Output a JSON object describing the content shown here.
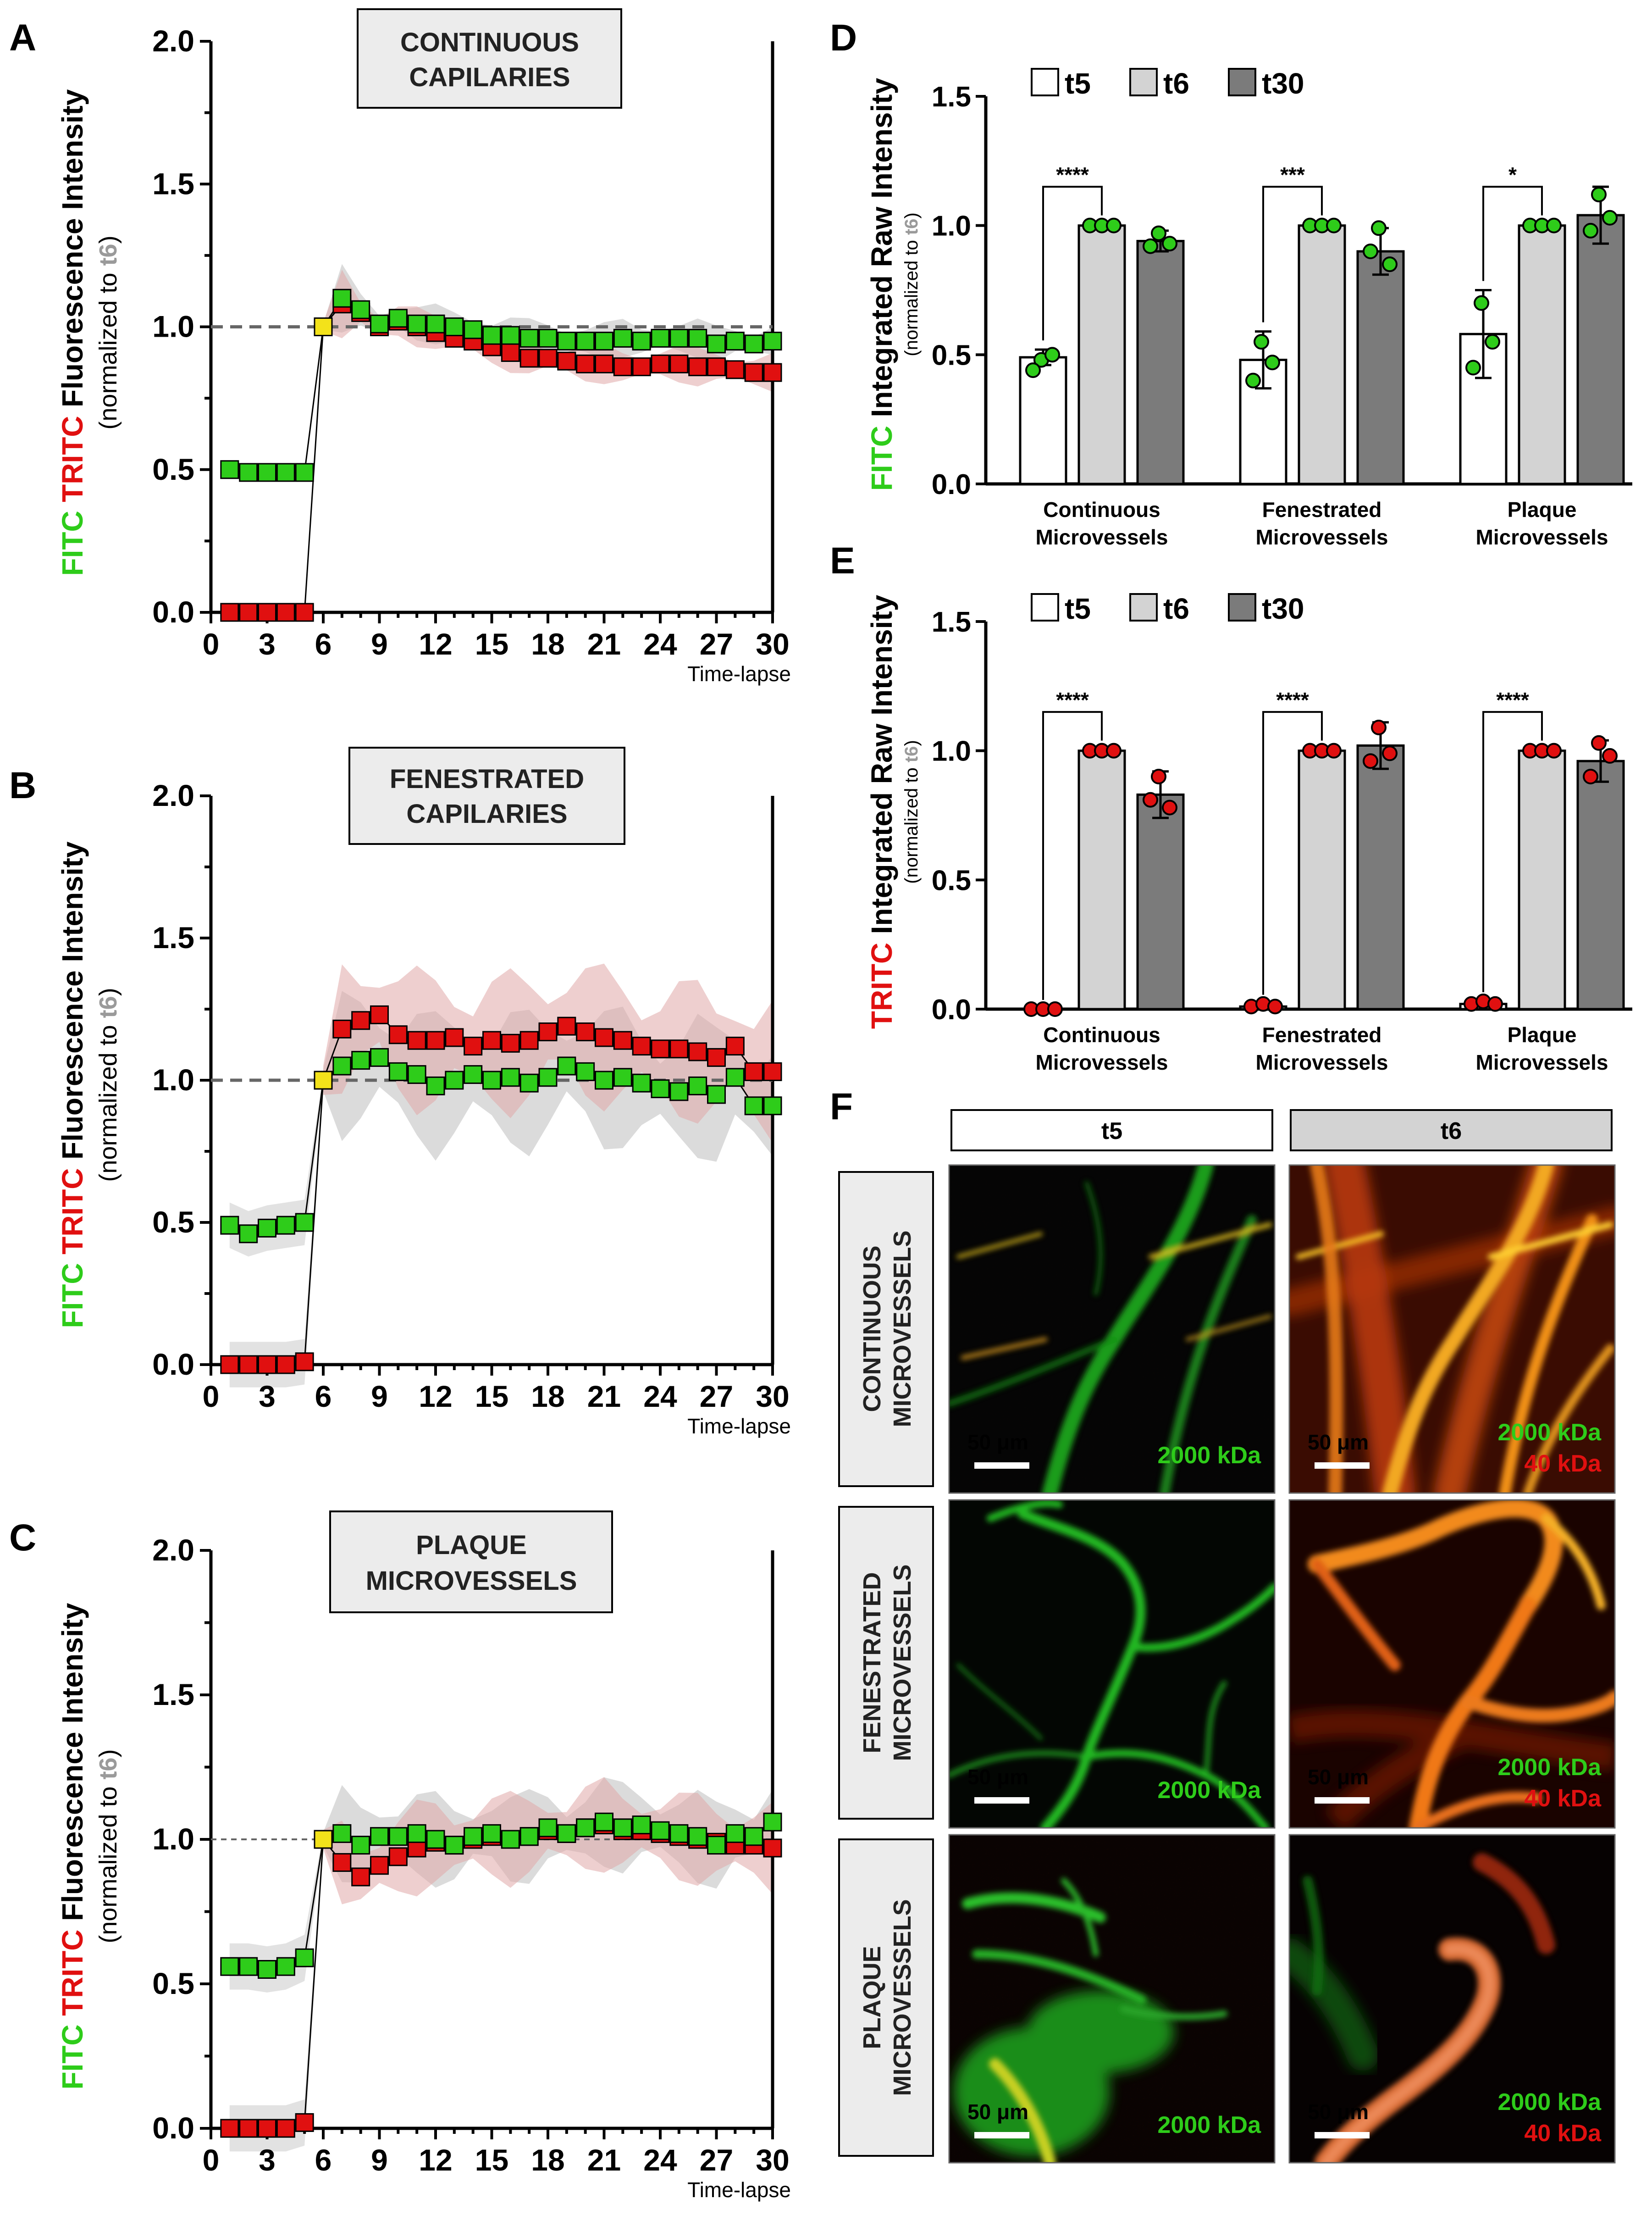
{
  "colors": {
    "fitc": "#2ecc1a",
    "tritc": "#e01010",
    "t6_label": "#9a9a9a",
    "yellow": "#f3e21a",
    "t5": "#ffffff",
    "t6": "#d3d3d3",
    "t30": "#7b7b7b"
  },
  "panel_letters": {
    "A": "A",
    "B": "B",
    "C": "C",
    "D": "D",
    "E": "E",
    "F": "F"
  },
  "ylabel_line": {
    "fitc": "FITC",
    "tritc": "TRITC",
    "rest": "Fluorescence Intensity",
    "norm_pre": "(normalized to ",
    "norm_t6": "t6",
    "norm_post": ")"
  },
  "bar_ylabel": {
    "d_stain": "FITC",
    "e_stain": "TRITC",
    "rest": "Integrated Raw Intensity",
    "norm_pre": "(normalized to ",
    "norm_t6": "t6",
    "norm_post": ")"
  },
  "chart_data": [
    {
      "id": "A",
      "type": "line",
      "title": "CONTINUOUS CAPILARIES",
      "xlabel": "Time-lapse",
      "ylim": [
        0,
        2.0
      ],
      "xlim": [
        0,
        30
      ],
      "xticks": [
        "0",
        "3",
        "6",
        "9",
        "12",
        "15",
        "18",
        "21",
        "24",
        "27",
        "30"
      ],
      "yticks": [
        "0.0",
        "0.5",
        "1.0",
        "1.5",
        "2.0"
      ],
      "reference_line": 1.0,
      "x": [
        1,
        2,
        3,
        4,
        5,
        6,
        7,
        8,
        9,
        10,
        11,
        12,
        13,
        14,
        15,
        16,
        17,
        18,
        19,
        20,
        21,
        22,
        23,
        24,
        25,
        26,
        27,
        28,
        29,
        30
      ],
      "series": [
        {
          "name": "FITC",
          "values": [
            0.5,
            0.49,
            0.49,
            0.49,
            0.49,
            1.0,
            1.1,
            1.06,
            1.01,
            1.03,
            1.01,
            1.01,
            1.0,
            0.99,
            0.97,
            0.97,
            0.96,
            0.96,
            0.95,
            0.95,
            0.95,
            0.96,
            0.95,
            0.96,
            0.96,
            0.96,
            0.94,
            0.95,
            0.94,
            0.95
          ]
        },
        {
          "name": "TRITC",
          "values": [
            0.0,
            0.0,
            0.0,
            0.0,
            0.0,
            1.0,
            1.08,
            1.05,
            1.0,
            1.02,
            1.0,
            0.98,
            0.96,
            0.95,
            0.93,
            0.91,
            0.89,
            0.89,
            0.88,
            0.87,
            0.87,
            0.86,
            0.86,
            0.87,
            0.87,
            0.86,
            0.86,
            0.85,
            0.84,
            0.84
          ]
        }
      ]
    },
    {
      "id": "B",
      "type": "line",
      "title": "FENESTRATED CAPILARIES",
      "xlabel": "Time-lapse",
      "ylim": [
        0,
        2.0
      ],
      "xlim": [
        0,
        30
      ],
      "xticks": [
        "0",
        "3",
        "6",
        "9",
        "12",
        "15",
        "18",
        "21",
        "24",
        "27",
        "30"
      ],
      "yticks": [
        "0.0",
        "0.5",
        "1.0",
        "1.5",
        "2.0"
      ],
      "reference_line": 1.0,
      "x": [
        1,
        2,
        3,
        4,
        5,
        6,
        7,
        8,
        9,
        10,
        11,
        12,
        13,
        14,
        15,
        16,
        17,
        18,
        19,
        20,
        21,
        22,
        23,
        24,
        25,
        26,
        27,
        28,
        29,
        30
      ],
      "series": [
        {
          "name": "FITC",
          "values": [
            0.49,
            0.46,
            0.48,
            0.49,
            0.5,
            1.0,
            1.05,
            1.07,
            1.08,
            1.03,
            1.02,
            0.98,
            1.0,
            1.02,
            1.0,
            1.01,
            0.99,
            1.01,
            1.05,
            1.03,
            1.0,
            1.01,
            0.99,
            0.97,
            0.96,
            0.98,
            0.95,
            1.01,
            0.91,
            0.91
          ]
        },
        {
          "name": "TRITC",
          "values": [
            0.0,
            0.0,
            0.0,
            0.0,
            0.01,
            1.0,
            1.18,
            1.21,
            1.23,
            1.16,
            1.14,
            1.14,
            1.15,
            1.12,
            1.14,
            1.13,
            1.14,
            1.17,
            1.19,
            1.17,
            1.15,
            1.14,
            1.12,
            1.11,
            1.11,
            1.1,
            1.08,
            1.12,
            1.03,
            1.03
          ]
        }
      ]
    },
    {
      "id": "C",
      "type": "line",
      "title": "PLAQUE MICROVESSELS",
      "xlabel": "Time-lapse",
      "ylim": [
        0,
        2.0
      ],
      "xlim": [
        0,
        30
      ],
      "xticks": [
        "0",
        "3",
        "6",
        "9",
        "12",
        "15",
        "18",
        "21",
        "24",
        "27",
        "30"
      ],
      "yticks": [
        "0.0",
        "0.5",
        "1.0",
        "1.5",
        "2.0"
      ],
      "reference_line": 1.0,
      "x": [
        1,
        2,
        3,
        4,
        5,
        6,
        7,
        8,
        9,
        10,
        11,
        12,
        13,
        14,
        15,
        16,
        17,
        18,
        19,
        20,
        21,
        22,
        23,
        24,
        25,
        26,
        27,
        28,
        29,
        30
      ],
      "series": [
        {
          "name": "FITC",
          "values": [
            0.56,
            0.56,
            0.55,
            0.56,
            0.59,
            1.0,
            1.02,
            0.98,
            1.01,
            1.01,
            1.02,
            1.0,
            0.98,
            1.01,
            1.02,
            1.0,
            1.01,
            1.04,
            1.02,
            1.04,
            1.06,
            1.04,
            1.05,
            1.03,
            1.02,
            1.01,
            0.98,
            1.02,
            1.01,
            1.06
          ]
        },
        {
          "name": "TRITC",
          "values": [
            0.0,
            0.0,
            0.0,
            0.0,
            0.02,
            1.0,
            0.92,
            0.87,
            0.91,
            0.94,
            0.97,
            0.99,
            0.98,
            1.0,
            1.01,
            1.0,
            1.01,
            1.03,
            1.02,
            1.04,
            1.05,
            1.03,
            1.03,
            1.02,
            1.01,
            1.0,
            0.99,
            0.98,
            0.98,
            0.97
          ]
        }
      ]
    },
    {
      "id": "D",
      "type": "bar",
      "ylim": [
        0,
        1.5
      ],
      "yticks": [
        "0.0",
        "0.5",
        "1.0",
        "1.5"
      ],
      "categories": [
        "Continuous Microvessels",
        "Fenestrated Microvessels",
        "Plaque Microvessels"
      ],
      "category_lines": [
        [
          "Continuous",
          "Microvessels"
        ],
        [
          "Fenestrated",
          "Microvessels"
        ],
        [
          "Plaque",
          "Microvessels"
        ]
      ],
      "legend": [
        "t5",
        "t6",
        "t30"
      ],
      "point_color": "fitc",
      "series": [
        {
          "name": "t5",
          "values": [
            0.49,
            0.48,
            0.58
          ],
          "sd": [
            0.03,
            0.11,
            0.17
          ],
          "points": [
            [
              0.48,
              0.5,
              0.44
            ],
            [
              0.55,
              0.47,
              0.4
            ],
            [
              0.7,
              0.55,
              0.45
            ]
          ]
        },
        {
          "name": "t6",
          "values": [
            1.0,
            1.0,
            1.0
          ],
          "sd": [
            0,
            0,
            0
          ],
          "points": [
            [
              1.0,
              1.0,
              1.0
            ],
            [
              1.0,
              1.0,
              1.0
            ],
            [
              1.0,
              1.0,
              1.0
            ]
          ]
        },
        {
          "name": "t30",
          "values": [
            0.94,
            0.9,
            1.04
          ],
          "sd": [
            0.04,
            0.09,
            0.11
          ],
          "points": [
            [
              0.97,
              0.93,
              0.92
            ],
            [
              0.99,
              0.85,
              0.9
            ],
            [
              1.12,
              1.03,
              0.98
            ]
          ]
        }
      ],
      "significance": [
        "****",
        "***",
        "*"
      ]
    },
    {
      "id": "E",
      "type": "bar",
      "ylim": [
        0,
        1.5
      ],
      "yticks": [
        "0.0",
        "0.5",
        "1.0",
        "1.5"
      ],
      "categories": [
        "Continuous Microvessels",
        "Fenestrated Microvessels",
        "Plaque Microvessels"
      ],
      "category_lines": [
        [
          "Continuous",
          "Microvessels"
        ],
        [
          "Fenestrated",
          "Microvessels"
        ],
        [
          "Plaque",
          "Microvessels"
        ]
      ],
      "legend": [
        "t5",
        "t6",
        "t30"
      ],
      "point_color": "tritc",
      "series": [
        {
          "name": "t5",
          "values": [
            0.0,
            0.01,
            0.02
          ],
          "sd": [
            0,
            0.01,
            0.01
          ],
          "points": [
            [
              0.0,
              0.0,
              0.0
            ],
            [
              0.01,
              0.02,
              0.01
            ],
            [
              0.02,
              0.03,
              0.02
            ]
          ]
        },
        {
          "name": "t6",
          "values": [
            1.0,
            1.0,
            1.0
          ],
          "sd": [
            0,
            0,
            0
          ],
          "points": [
            [
              1.0,
              1.0,
              1.0
            ],
            [
              1.0,
              1.0,
              1.0
            ],
            [
              1.0,
              1.0,
              1.0
            ]
          ]
        },
        {
          "name": "t30",
          "values": [
            0.83,
            1.02,
            0.96
          ],
          "sd": [
            0.09,
            0.09,
            0.08
          ],
          "points": [
            [
              0.9,
              0.78,
              0.81
            ],
            [
              1.09,
              0.99,
              0.96
            ],
            [
              1.03,
              0.98,
              0.9
            ]
          ]
        }
      ],
      "significance": [
        "****",
        "****",
        "****"
      ]
    }
  ],
  "panel_f": {
    "columns": [
      "t5",
      "t6"
    ],
    "rows": [
      {
        "label_line1": "CONTINUOUS",
        "label_line2": "MICROVESSELS",
        "scale": "50 μm",
        "t5_label": "2000 kDa",
        "t6_label1": "2000 kDa",
        "t6_label2": "40 kDa"
      },
      {
        "label_line1": "FENESTRATED",
        "label_line2": "MICROVESSELS",
        "scale": "50 μm",
        "t5_label": "2000 kDa",
        "t6_label1": "2000 kDa",
        "t6_label2": "40 kDa"
      },
      {
        "label_line1": "PLAQUE",
        "label_line2": "MICROVESSELS",
        "scale": "50 μm",
        "t5_label": "2000 kDa",
        "t6_label1": "2000 kDa",
        "t6_label2": "40 kDa"
      }
    ]
  }
}
